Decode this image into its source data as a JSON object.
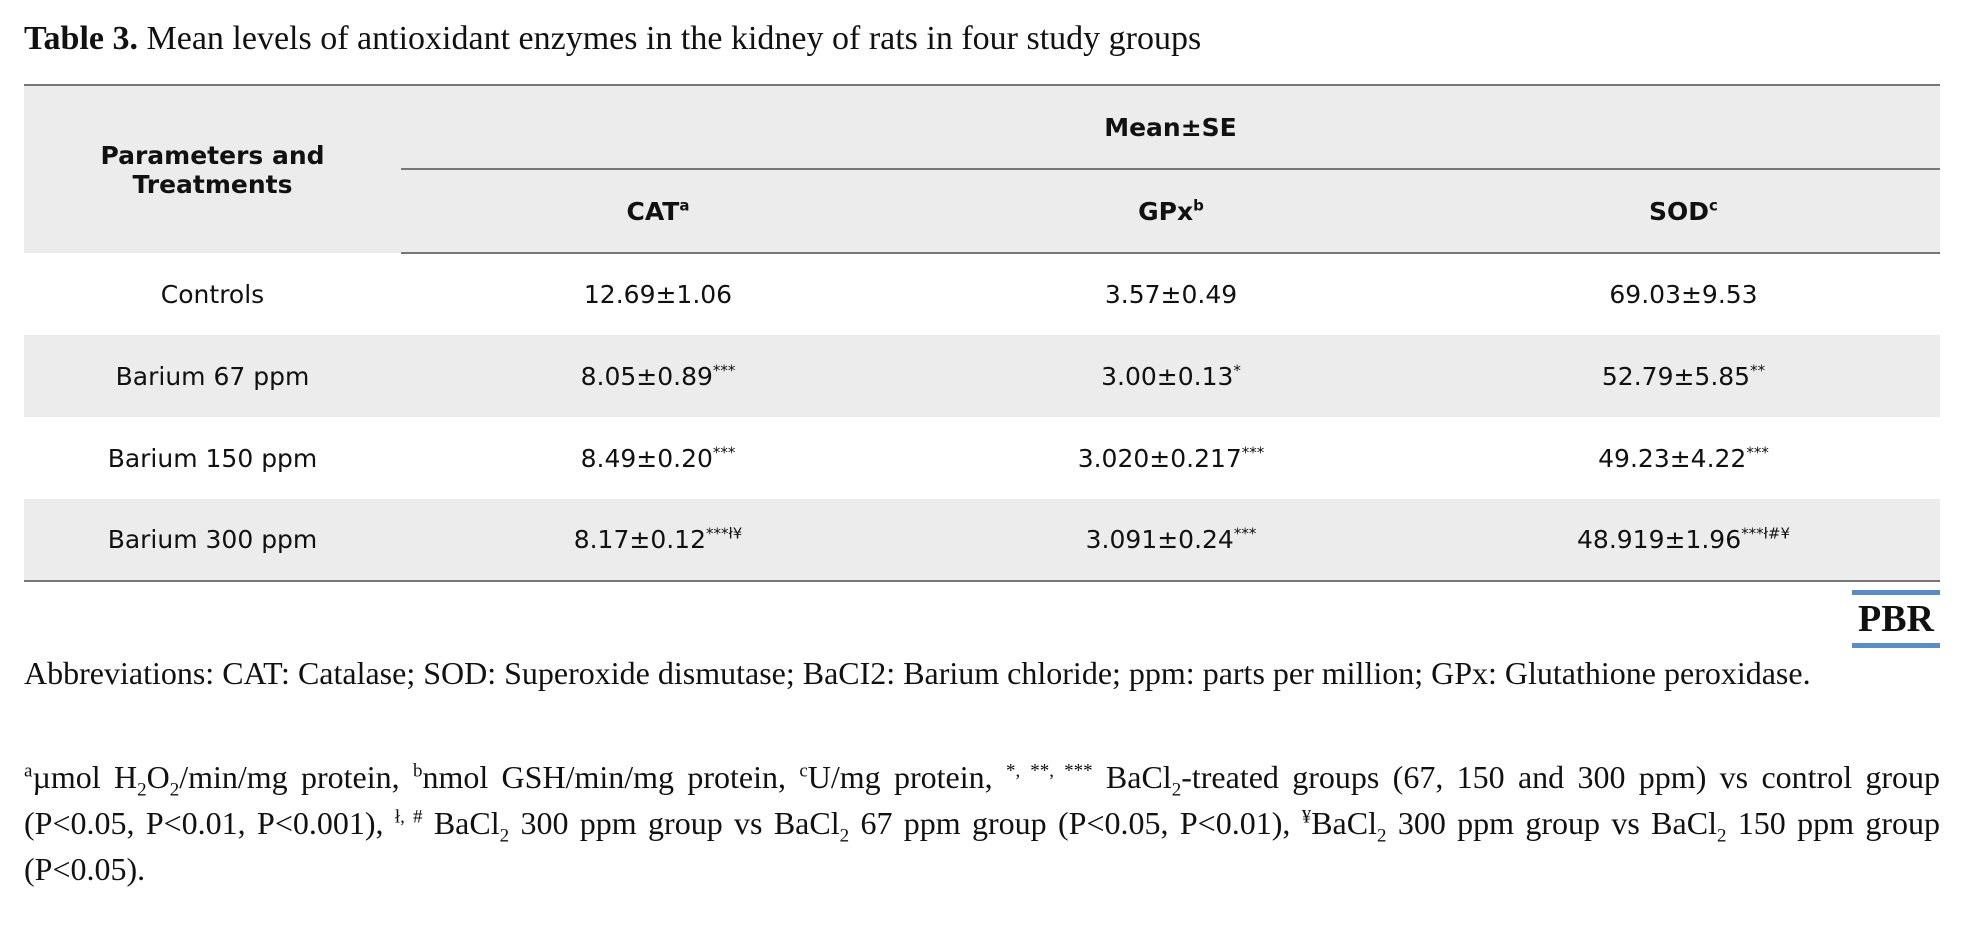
{
  "caption": {
    "label": "Table 3.",
    "text": " Mean levels of antioxidant enzymes in the kidney of rats in four study groups"
  },
  "table": {
    "row_header": "Parameters and Treatments",
    "group_header": "Mean±SE",
    "columns": [
      {
        "name": "CAT",
        "sup": "a"
      },
      {
        "name": "GPx",
        "sup": "b"
      },
      {
        "name": "SOD",
        "sup": "c"
      }
    ],
    "rows": [
      {
        "label": "Controls",
        "cells": [
          {
            "value": "12.69±1.06",
            "sup": ""
          },
          {
            "value": "3.57±0.49",
            "sup": ""
          },
          {
            "value": "69.03±9.53",
            "sup": ""
          }
        ]
      },
      {
        "label": "Barium 67 ppm",
        "cells": [
          {
            "value": "8.05±0.89",
            "sup": "***"
          },
          {
            "value": "3.00±0.13",
            "sup": "*"
          },
          {
            "value": "52.79±5.85",
            "sup": "**"
          }
        ]
      },
      {
        "label": "Barium 150 ppm",
        "cells": [
          {
            "value": "8.49±0.20",
            "sup": "***"
          },
          {
            "value": "3.020±0.217",
            "sup": "***"
          },
          {
            "value": "49.23±4.22",
            "sup": "***"
          }
        ]
      },
      {
        "label": "Barium 300 ppm",
        "cells": [
          {
            "value": "8.17±0.12",
            "sup": "***ł¥"
          },
          {
            "value": "3.091±0.24",
            "sup": "***"
          },
          {
            "value": "48.919±1.96",
            "sup": "***ł#¥"
          }
        ]
      }
    ]
  },
  "logo": "PBR",
  "abbreviations": "Abbreviations: CAT: Catalase; SOD: Superoxide dismutase; BaCI2: Barium chloride; ppm: parts per million; GPx: Glutathione peroxidase.",
  "footnote": {
    "sup_a": "a",
    "t1": "µmol H",
    "sub_2a": "2",
    "t2": "O",
    "sub_2b": "2",
    "t3": "/min/mg protein, ",
    "sup_b": "b",
    "t4": "nmol GSH/min/mg protein, ",
    "sup_c": "c",
    "t5": "U/mg protein, ",
    "sup_stars": "*, **, ***",
    "t6": " BaCl",
    "sub_2c": "2",
    "t7": "-treated groups (67, 150 and 300 ppm) vs control group (P<0.05, P<0.01, P<0.001), ",
    "sup_cross": "ł, #",
    "t8": " BaCl",
    "sub_2d": "2",
    "t9": " 300 ppm group vs BaCl",
    "sub_2e": "2",
    "t10": " 67 ppm group (P<0.05, P<0.01), ",
    "sup_yen": "¥",
    "t11": "BaCl",
    "sub_2f": "2",
    "t12": " 300 ppm group vs BaCl",
    "sub_2g": "2",
    "t13": " 150 ppm group (P<0.05)."
  }
}
